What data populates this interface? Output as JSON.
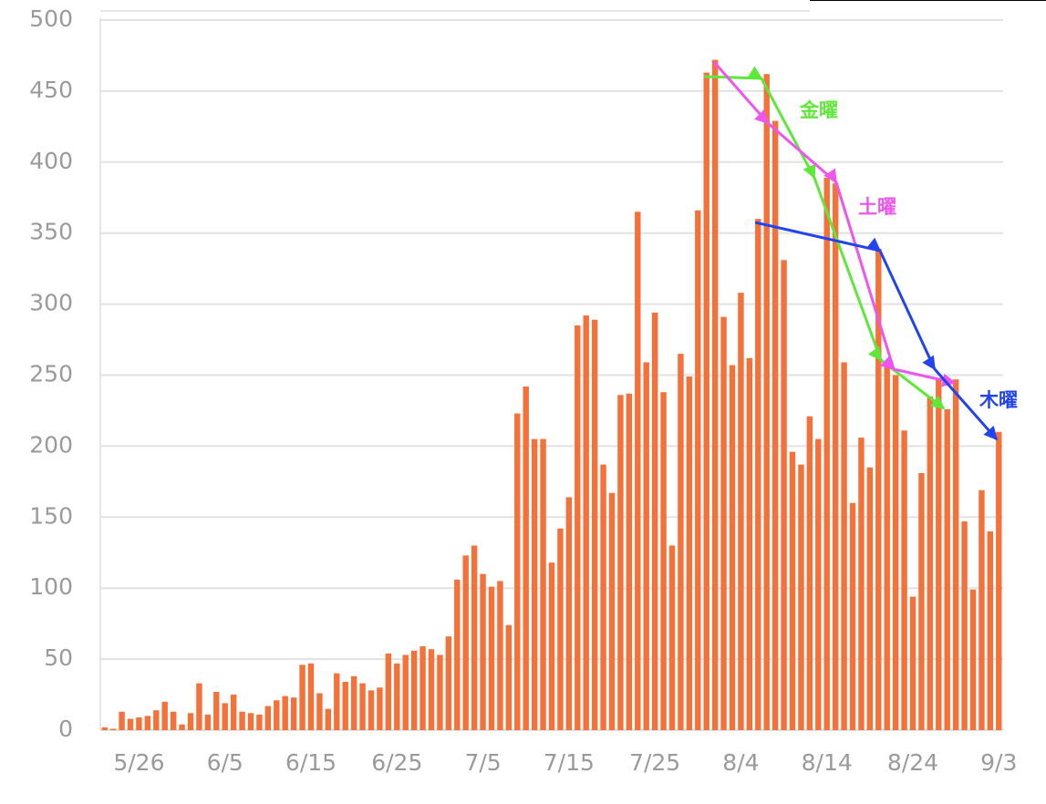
{
  "chart_data": {
    "type": "bar",
    "categories": [
      null,
      null,
      null,
      null,
      "5/26",
      null,
      null,
      null,
      null,
      null,
      null,
      null,
      null,
      null,
      "6/5",
      null,
      null,
      null,
      null,
      null,
      null,
      null,
      null,
      null,
      "6/15",
      null,
      null,
      null,
      null,
      null,
      null,
      null,
      null,
      null,
      "6/25",
      null,
      null,
      null,
      null,
      null,
      null,
      null,
      null,
      null,
      "7/5",
      null,
      null,
      null,
      null,
      null,
      null,
      null,
      null,
      null,
      "7/15",
      null,
      null,
      null,
      null,
      null,
      null,
      null,
      null,
      null,
      "7/25",
      null,
      null,
      null,
      null,
      null,
      null,
      null,
      null,
      null,
      "8/4",
      null,
      null,
      null,
      null,
      null,
      null,
      null,
      null,
      null,
      "8/14",
      null,
      null,
      null,
      null,
      null,
      null,
      null,
      null,
      null,
      "8/24",
      null,
      null,
      null,
      null,
      null,
      null,
      null,
      null,
      null,
      "9/3"
    ],
    "values": [
      2,
      1,
      13,
      8,
      9,
      10,
      14,
      20,
      13,
      4,
      12,
      33,
      11,
      27,
      19,
      25,
      13,
      12,
      11,
      17,
      21,
      24,
      23,
      46,
      47,
      26,
      15,
      40,
      34,
      38,
      33,
      28,
      30,
      54,
      47,
      53,
      56,
      59,
      57,
      53,
      66,
      106,
      123,
      130,
      110,
      101,
      105,
      74,
      223,
      242,
      205,
      205,
      118,
      142,
      164,
      285,
      292,
      289,
      187,
      167,
      236,
      237,
      365,
      259,
      294,
      238,
      130,
      265,
      249,
      366,
      463,
      472,
      291,
      257,
      308,
      262,
      360,
      462,
      429,
      331,
      196,
      187,
      221,
      205,
      389,
      385,
      259,
      160,
      206,
      185,
      339,
      258,
      250,
      211,
      94,
      181,
      235,
      248,
      226,
      247,
      147,
      99,
      169,
      140,
      210
    ],
    "color": "#f5713a",
    "ylim": [
      0,
      500
    ],
    "yticks": [
      0,
      50,
      100,
      150,
      200,
      250,
      300,
      350,
      400,
      450,
      500
    ],
    "grid": true,
    "annotations": [
      {
        "text": "金曜",
        "color": "#5ee83a"
      },
      {
        "text": "土曜",
        "color": "#ee55ee"
      },
      {
        "text": "木曜",
        "color": "#2244ee"
      }
    ]
  }
}
